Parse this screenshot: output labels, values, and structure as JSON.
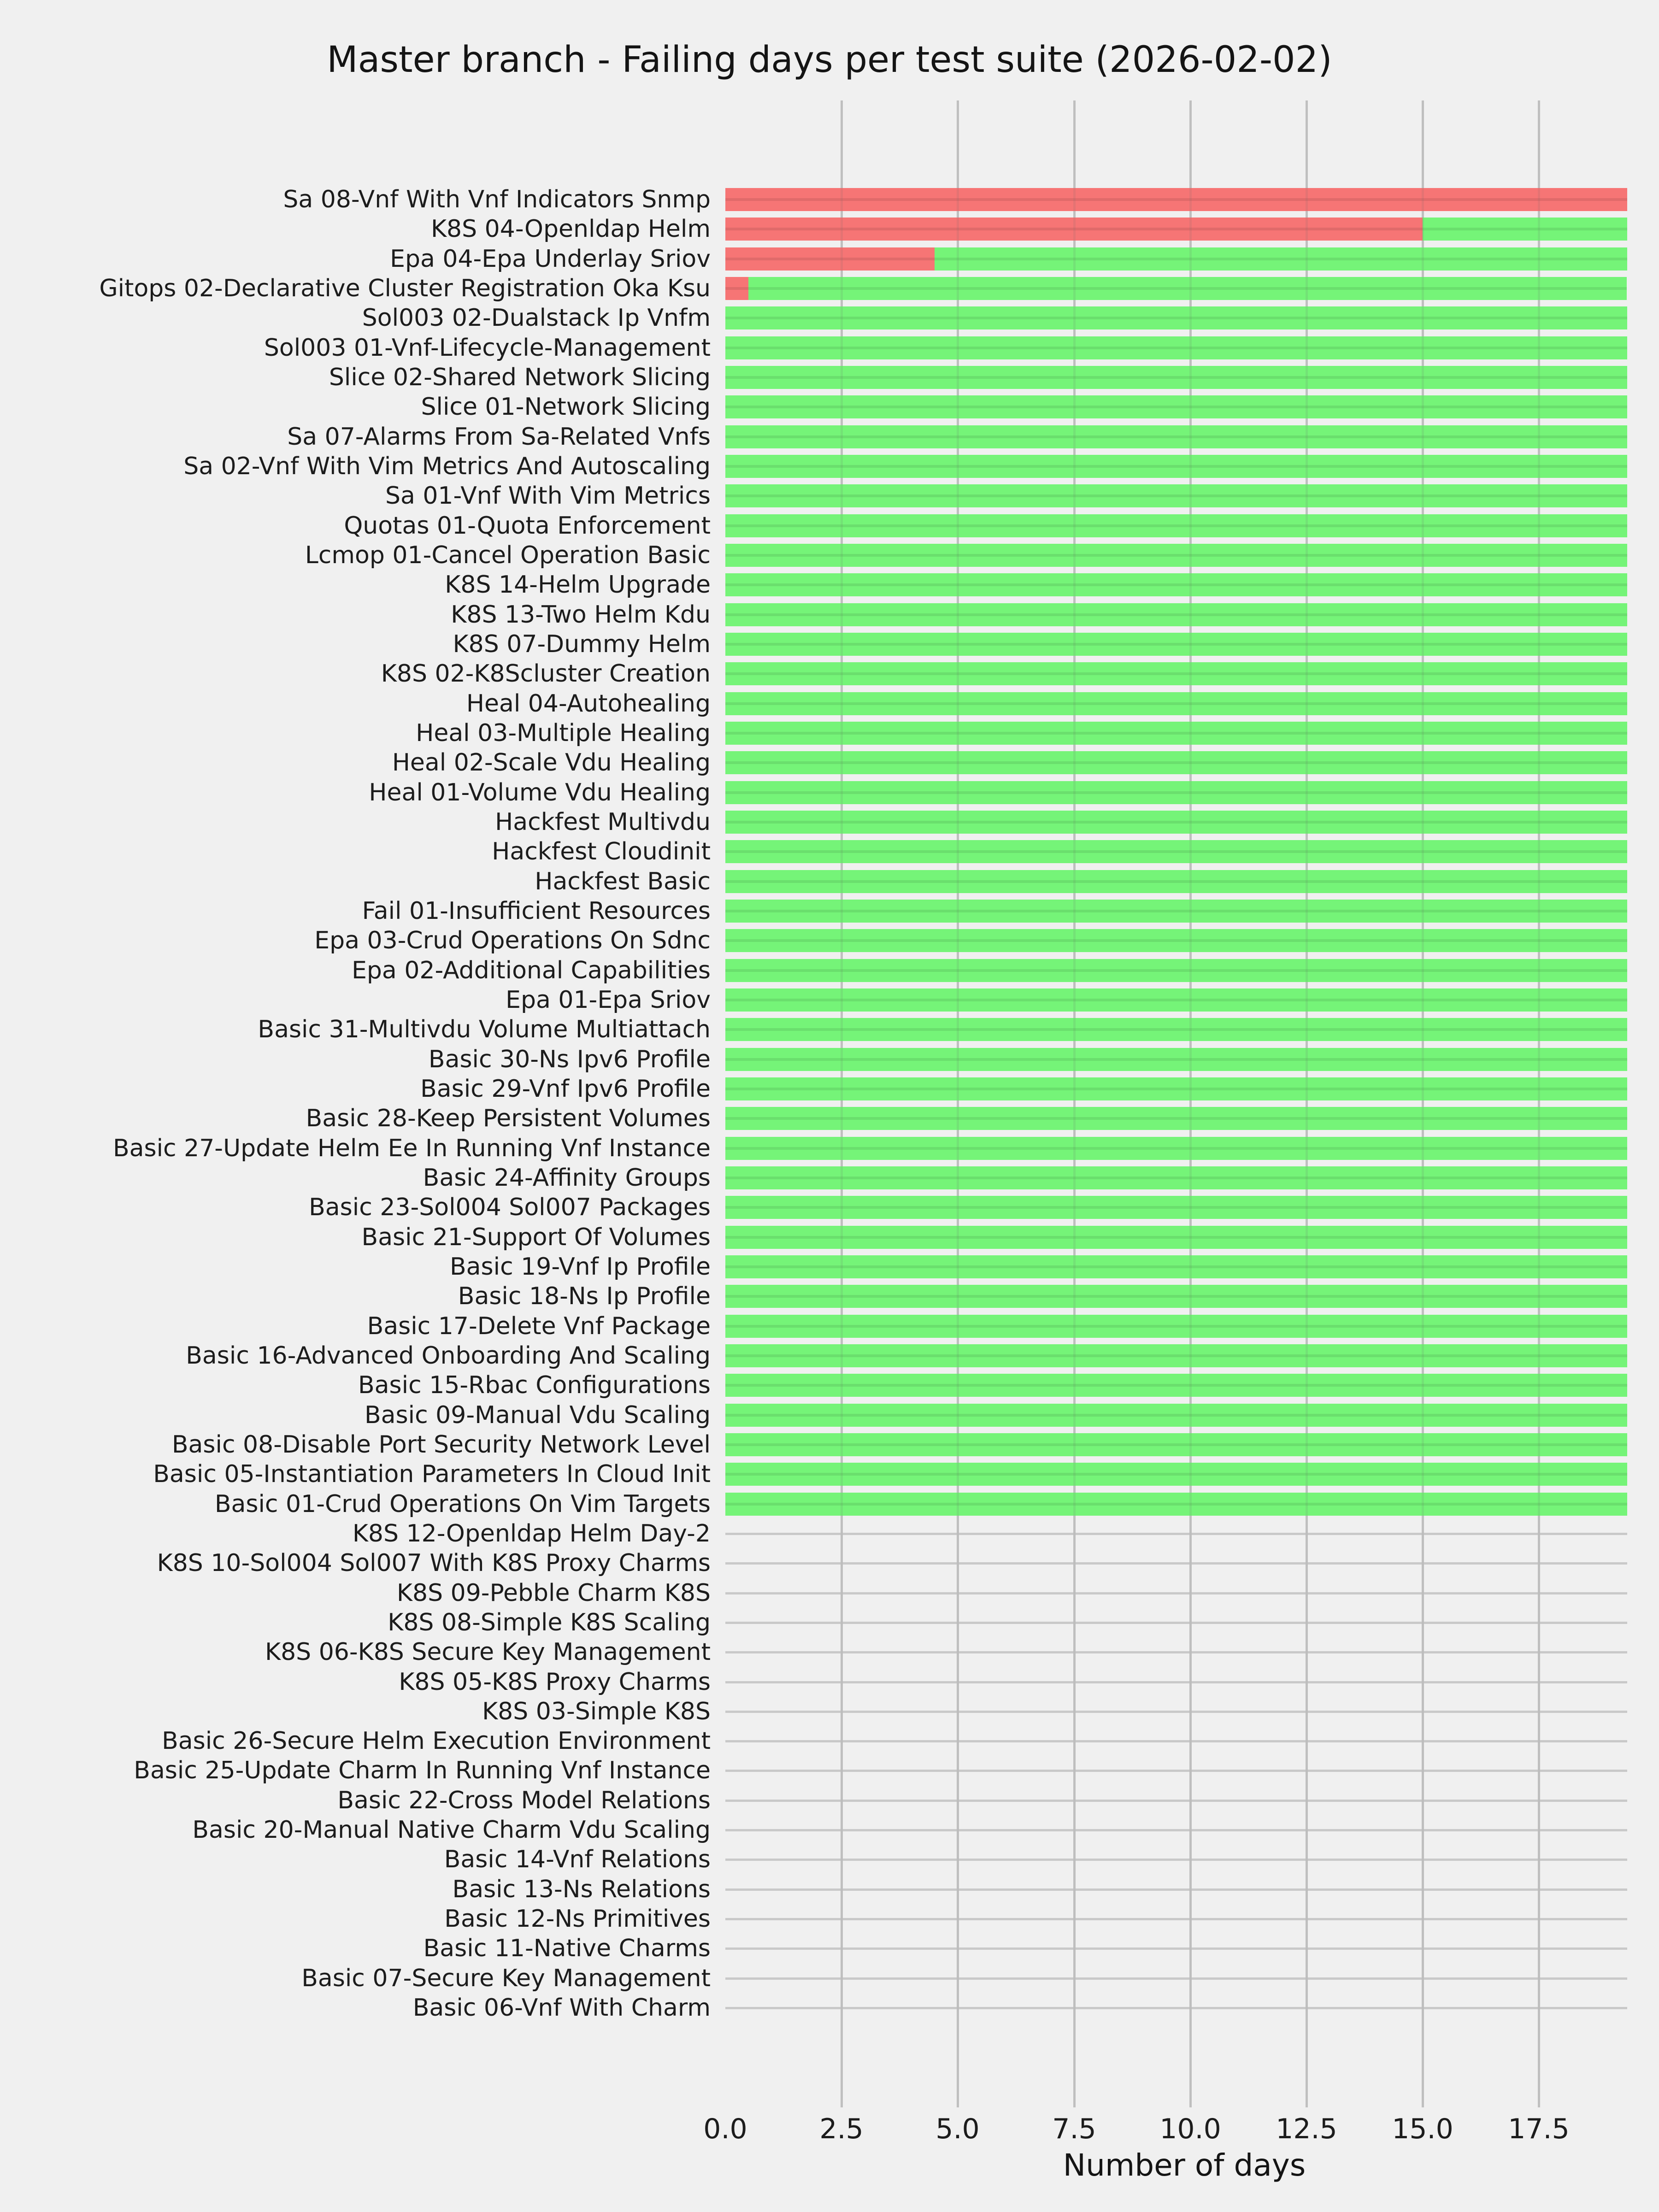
{
  "title": "Master branch - Failing days per test suite (2026-02-02)",
  "colors": {
    "failing": "#f67575",
    "passing": "#75f478",
    "background": "#f0f0f0",
    "gridline": "#cccccc",
    "zero_track": "#c9c9c9",
    "text": "#1c1c1c"
  },
  "chart_data": {
    "type": "bar",
    "orientation": "horizontal",
    "stacked": true,
    "title": "Master branch - Failing days per test suite (2026-02-02)",
    "xlabel": "Number of days",
    "ylabel": "",
    "xlim": [
      0,
      19.75
    ],
    "x_tick_values": [
      0,
      2.5,
      5,
      7.5,
      10,
      12.5,
      15,
      17.5
    ],
    "x_tick_labels": [
      "0.0",
      "2.5",
      "5.0",
      "7.5",
      "10.0",
      "12.5",
      "15.0",
      "17.5"
    ],
    "grid": "vertical",
    "legend": "none",
    "total_days": 19.4,
    "series_names": [
      "failing_days",
      "passing_days"
    ],
    "suites": [
      {
        "label": "Sa 08-Vnf With Vnf Indicators Snmp",
        "failing": 19.4,
        "passing": 0
      },
      {
        "label": "K8S 04-Openldap Helm",
        "failing": 15.0,
        "passing": 4.4
      },
      {
        "label": "Epa 04-Epa Underlay Sriov",
        "failing": 4.5,
        "passing": 14.9
      },
      {
        "label": "Gitops 02-Declarative Cluster Registration Oka Ksu",
        "failing": 0.5,
        "passing": 18.9
      },
      {
        "label": "Sol003 02-Dualstack Ip Vnfm",
        "failing": 0,
        "passing": 19.4
      },
      {
        "label": "Sol003 01-Vnf-Lifecycle-Management",
        "failing": 0,
        "passing": 19.4
      },
      {
        "label": "Slice 02-Shared Network Slicing",
        "failing": 0,
        "passing": 19.4
      },
      {
        "label": "Slice 01-Network Slicing",
        "failing": 0,
        "passing": 19.4
      },
      {
        "label": "Sa 07-Alarms From Sa-Related Vnfs",
        "failing": 0,
        "passing": 19.4
      },
      {
        "label": "Sa 02-Vnf With Vim Metrics And Autoscaling",
        "failing": 0,
        "passing": 19.4
      },
      {
        "label": "Sa 01-Vnf With Vim Metrics",
        "failing": 0,
        "passing": 19.4
      },
      {
        "label": "Quotas 01-Quota Enforcement",
        "failing": 0,
        "passing": 19.4
      },
      {
        "label": "Lcmop 01-Cancel Operation Basic",
        "failing": 0,
        "passing": 19.4
      },
      {
        "label": "K8S 14-Helm Upgrade",
        "failing": 0,
        "passing": 19.4
      },
      {
        "label": "K8S 13-Two Helm Kdu",
        "failing": 0,
        "passing": 19.4
      },
      {
        "label": "K8S 07-Dummy Helm",
        "failing": 0,
        "passing": 19.4
      },
      {
        "label": "K8S 02-K8Scluster Creation",
        "failing": 0,
        "passing": 19.4
      },
      {
        "label": "Heal 04-Autohealing",
        "failing": 0,
        "passing": 19.4
      },
      {
        "label": "Heal 03-Multiple Healing",
        "failing": 0,
        "passing": 19.4
      },
      {
        "label": "Heal 02-Scale Vdu Healing",
        "failing": 0,
        "passing": 19.4
      },
      {
        "label": "Heal 01-Volume Vdu Healing",
        "failing": 0,
        "passing": 19.4
      },
      {
        "label": "Hackfest Multivdu",
        "failing": 0,
        "passing": 19.4
      },
      {
        "label": "Hackfest Cloudinit",
        "failing": 0,
        "passing": 19.4
      },
      {
        "label": "Hackfest Basic",
        "failing": 0,
        "passing": 19.4
      },
      {
        "label": "Fail 01-Insufficient Resources",
        "failing": 0,
        "passing": 19.4
      },
      {
        "label": "Epa 03-Crud Operations On Sdnc",
        "failing": 0,
        "passing": 19.4
      },
      {
        "label": "Epa 02-Additional Capabilities",
        "failing": 0,
        "passing": 19.4
      },
      {
        "label": "Epa 01-Epa Sriov",
        "failing": 0,
        "passing": 19.4
      },
      {
        "label": "Basic 31-Multivdu Volume Multiattach",
        "failing": 0,
        "passing": 19.4
      },
      {
        "label": "Basic 30-Ns Ipv6 Profile",
        "failing": 0,
        "passing": 19.4
      },
      {
        "label": "Basic 29-Vnf Ipv6 Profile",
        "failing": 0,
        "passing": 19.4
      },
      {
        "label": "Basic 28-Keep Persistent Volumes",
        "failing": 0,
        "passing": 19.4
      },
      {
        "label": "Basic 27-Update Helm Ee In Running Vnf Instance",
        "failing": 0,
        "passing": 19.4
      },
      {
        "label": "Basic 24-Affinity Groups",
        "failing": 0,
        "passing": 19.4
      },
      {
        "label": "Basic 23-Sol004 Sol007 Packages",
        "failing": 0,
        "passing": 19.4
      },
      {
        "label": "Basic 21-Support Of Volumes",
        "failing": 0,
        "passing": 19.4
      },
      {
        "label": "Basic 19-Vnf Ip Profile",
        "failing": 0,
        "passing": 19.4
      },
      {
        "label": "Basic 18-Ns Ip Profile",
        "failing": 0,
        "passing": 19.4
      },
      {
        "label": "Basic 17-Delete Vnf Package",
        "failing": 0,
        "passing": 19.4
      },
      {
        "label": "Basic 16-Advanced Onboarding And Scaling",
        "failing": 0,
        "passing": 19.4
      },
      {
        "label": "Basic 15-Rbac Configurations",
        "failing": 0,
        "passing": 19.4
      },
      {
        "label": "Basic 09-Manual Vdu Scaling",
        "failing": 0,
        "passing": 19.4
      },
      {
        "label": "Basic 08-Disable Port Security Network Level",
        "failing": 0,
        "passing": 19.4
      },
      {
        "label": "Basic 05-Instantiation Parameters In Cloud Init",
        "failing": 0,
        "passing": 19.4
      },
      {
        "label": "Basic 01-Crud Operations On Vim Targets",
        "failing": 0,
        "passing": 19.4
      },
      {
        "label": "K8S 12-Openldap Helm Day-2",
        "failing": 0,
        "passing": 0
      },
      {
        "label": "K8S 10-Sol004 Sol007 With K8S Proxy Charms",
        "failing": 0,
        "passing": 0
      },
      {
        "label": "K8S 09-Pebble Charm K8S",
        "failing": 0,
        "passing": 0
      },
      {
        "label": "K8S 08-Simple K8S Scaling",
        "failing": 0,
        "passing": 0
      },
      {
        "label": "K8S 06-K8S Secure Key Management",
        "failing": 0,
        "passing": 0
      },
      {
        "label": "K8S 05-K8S Proxy Charms",
        "failing": 0,
        "passing": 0
      },
      {
        "label": "K8S 03-Simple K8S",
        "failing": 0,
        "passing": 0
      },
      {
        "label": "Basic 26-Secure Helm Execution Environment",
        "failing": 0,
        "passing": 0
      },
      {
        "label": "Basic 25-Update Charm In Running Vnf Instance",
        "failing": 0,
        "passing": 0
      },
      {
        "label": "Basic 22-Cross Model Relations",
        "failing": 0,
        "passing": 0
      },
      {
        "label": "Basic 20-Manual Native Charm Vdu Scaling",
        "failing": 0,
        "passing": 0
      },
      {
        "label": "Basic 14-Vnf Relations",
        "failing": 0,
        "passing": 0
      },
      {
        "label": "Basic 13-Ns Relations",
        "failing": 0,
        "passing": 0
      },
      {
        "label": "Basic 12-Ns Primitives",
        "failing": 0,
        "passing": 0
      },
      {
        "label": "Basic 11-Native Charms",
        "failing": 0,
        "passing": 0
      },
      {
        "label": "Basic 07-Secure Key Management",
        "failing": 0,
        "passing": 0
      },
      {
        "label": "Basic 06-Vnf With Charm",
        "failing": 0,
        "passing": 0
      }
    ]
  }
}
